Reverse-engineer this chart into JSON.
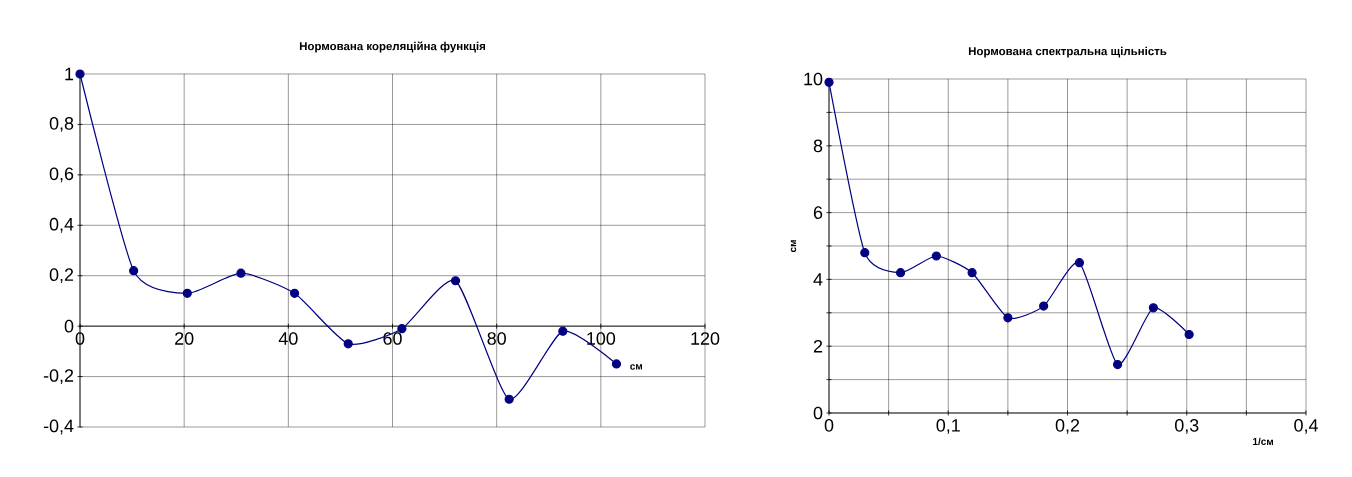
{
  "chart_data": [
    {
      "type": "line",
      "title": "Нормована кореляційна функція",
      "xlabel": "см",
      "x": [
        0,
        10.3,
        20.6,
        30.9,
        41.2,
        51.5,
        61.8,
        72.1,
        82.4,
        92.7,
        103
      ],
      "values": [
        1,
        0.22,
        0.13,
        0.21,
        0.13,
        -0.07,
        -0.01,
        0.18,
        -0.29,
        -0.02,
        -0.15
      ],
      "color": "#000080",
      "marker": "circle",
      "grid": true,
      "xlim": [
        0,
        120
      ],
      "ylim": [
        -0.4,
        1
      ],
      "xticks": [
        0,
        20,
        40,
        60,
        80,
        100,
        120
      ],
      "yticks": [
        {
          "value": -0.4,
          "label": "-0,4"
        },
        {
          "value": -0.2,
          "label": "-0,2"
        },
        0,
        {
          "value": 0.2,
          "label": "0,2"
        },
        {
          "value": 0.4,
          "label": "0,4"
        },
        {
          "value": 0.6,
          "label": "0,6"
        },
        {
          "value": 0.8,
          "label": "0,8"
        },
        1
      ]
    },
    {
      "type": "line",
      "title": "Нормована спектральна щільність",
      "xlabel": "1/см",
      "ylabel": "см",
      "x": [
        0,
        0.03,
        0.06,
        0.09,
        0.12,
        0.15,
        0.18,
        0.21,
        0.242,
        0.272,
        0.302
      ],
      "values": [
        9.9,
        4.8,
        4.2,
        4.7,
        4.2,
        2.85,
        3.2,
        4.5,
        1.45,
        3.15,
        2.35
      ],
      "color": "#000080",
      "marker": "circle",
      "grid": true,
      "xlim": [
        0,
        0.4
      ],
      "ylim": [
        0,
        10
      ],
      "xticks": [
        0,
        {
          "value": 0.05,
          "label": null
        },
        {
          "value": 0.1,
          "label": "0,1"
        },
        {
          "value": 0.15,
          "label": null
        },
        {
          "value": 0.2,
          "label": "0,2"
        },
        {
          "value": 0.25,
          "label": null
        },
        {
          "value": 0.3,
          "label": "0,3"
        },
        {
          "value": 0.35,
          "label": null
        },
        {
          "value": 0.4,
          "label": "0,4"
        }
      ],
      "yticks": [
        0,
        {
          "value": 1,
          "label": null
        },
        2,
        {
          "value": 3,
          "label": null
        },
        4,
        {
          "value": 5,
          "label": null
        },
        6,
        {
          "value": 7,
          "label": null
        },
        8,
        {
          "value": 9,
          "label": null
        },
        10
      ]
    }
  ]
}
